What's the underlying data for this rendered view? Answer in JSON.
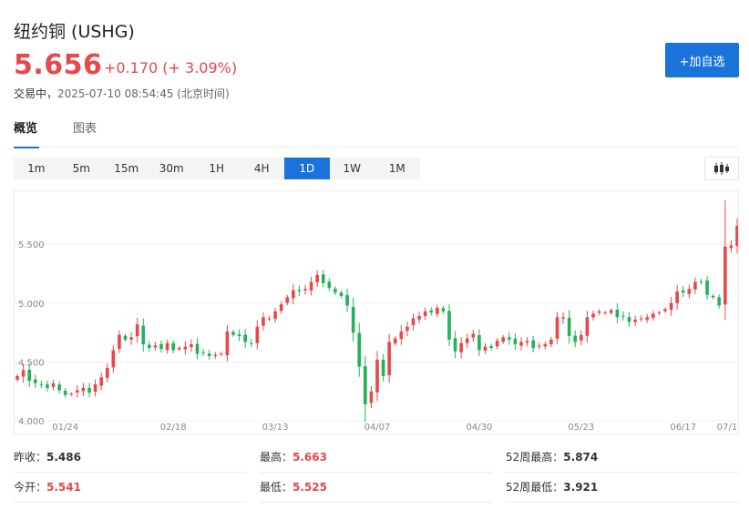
{
  "header": {
    "title": "纽约铜 (USHG)",
    "price": "5.656",
    "change": "+0.170 (+ 3.09%)",
    "status_prefix": "交易中，",
    "datetime": "2025-07-10 08:54:45",
    "timezone": "(北京时间)",
    "add_button_label": "+加自选"
  },
  "tabs": [
    {
      "label": "概览",
      "active": true
    },
    {
      "label": "图表",
      "active": false
    }
  ],
  "periods": [
    {
      "label": "1m",
      "active": false
    },
    {
      "label": "5m",
      "active": false
    },
    {
      "label": "15m",
      "active": false
    },
    {
      "label": "30m",
      "active": false
    },
    {
      "label": "1H",
      "active": false
    },
    {
      "label": "4H",
      "active": false
    },
    {
      "label": "1D",
      "active": true
    },
    {
      "label": "1W",
      "active": false
    },
    {
      "label": "1M",
      "active": false
    }
  ],
  "chart_type_icon": "candlestick-icon",
  "colors": {
    "up": "#e9474c",
    "down": "#1fb35a",
    "accent": "#1a73d9"
  },
  "chart_data": {
    "type": "candlestick",
    "y_ticks": [
      "5.500",
      "5.000",
      "4.500",
      "4.000"
    ],
    "y_tick_values": [
      5.5,
      5.0,
      4.5,
      4.0
    ],
    "ylim": [
      3.97,
      5.95
    ],
    "x_tick_labels": [
      "01/24",
      "02/18",
      "03/13",
      "04/07",
      "04/30",
      "05/23",
      "06/17",
      "07/1"
    ],
    "x_tick_index": [
      8,
      26,
      43,
      60,
      77,
      94,
      111,
      128
    ],
    "closes": [
      4.38,
      4.43,
      4.34,
      4.32,
      4.31,
      4.28,
      4.32,
      4.26,
      4.22,
      4.23,
      4.26,
      4.28,
      4.24,
      4.31,
      4.37,
      4.45,
      4.6,
      4.73,
      4.69,
      4.71,
      4.82,
      4.65,
      4.62,
      4.64,
      4.61,
      4.66,
      4.6,
      4.62,
      4.63,
      4.65,
      4.57,
      4.58,
      4.55,
      4.56,
      4.57,
      4.76,
      4.73,
      4.72,
      4.67,
      4.66,
      4.8,
      4.88,
      4.87,
      4.93,
      4.99,
      5.05,
      5.11,
      5.1,
      5.12,
      5.18,
      5.24,
      5.17,
      5.13,
      5.09,
      5.06,
      4.98,
      4.75,
      4.46,
      4.14,
      4.25,
      4.52,
      4.38,
      4.67,
      4.7,
      4.76,
      4.8,
      4.87,
      4.89,
      4.93,
      4.92,
      4.96,
      4.93,
      4.69,
      4.59,
      4.66,
      4.7,
      4.74,
      4.6,
      4.63,
      4.62,
      4.68,
      4.71,
      4.69,
      4.65,
      4.67,
      4.68,
      4.62,
      4.64,
      4.65,
      4.69,
      4.88,
      4.88,
      4.72,
      4.67,
      4.73,
      4.88,
      4.91,
      4.93,
      4.92,
      4.94,
      4.88,
      4.89,
      4.84,
      4.86,
      4.87,
      4.88,
      4.91,
      4.92,
      4.95,
      5.0,
      5.1,
      5.09,
      5.12,
      5.18,
      5.18,
      5.07,
      5.05,
      4.98,
      5.48,
      5.49,
      5.656
    ],
    "candles_ohlc_note": "open/high/low derived per candle in chart script"
  },
  "stats": [
    {
      "label": "昨收：",
      "value": "5.486",
      "red": false
    },
    {
      "label": "最高：",
      "value": "5.663",
      "red": true
    },
    {
      "label": "52周最高：",
      "value": "5.874",
      "red": false
    },
    {
      "label": "今开：",
      "value": "5.541",
      "red": true
    },
    {
      "label": "最低：",
      "value": "5.525",
      "red": true
    },
    {
      "label": "52周最低：",
      "value": "3.921",
      "red": false
    }
  ]
}
